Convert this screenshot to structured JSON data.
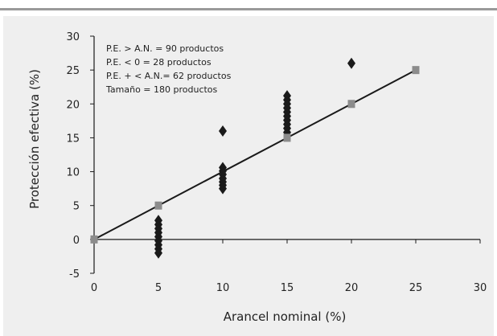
{
  "chart_data": {
    "type": "scatter",
    "xlabel": "Arancel nominal (%)",
    "ylabel": "Protección efectiva (%)",
    "xlim": [
      0,
      30
    ],
    "ylim": [
      -5,
      30
    ],
    "x_ticks": [
      0,
      5,
      10,
      15,
      20,
      25,
      30
    ],
    "y_ticks": [
      -5,
      0,
      5,
      10,
      15,
      20,
      25,
      30
    ],
    "x_tick_labels": [
      "0",
      "5",
      "10",
      "15",
      "20",
      "25",
      "30"
    ],
    "y_tick_labels": [
      "-5",
      "0",
      "5",
      "10",
      "15",
      "20",
      "25",
      "30"
    ],
    "grid": false,
    "annotations": [
      "P.E. > A.N. = 90 productos",
      "P.E. < 0 = 28 productos",
      "P.E. + < A.N.= 62 productos",
      "Tamaño = 180 productos"
    ],
    "series": [
      {
        "marker": "diamond",
        "color": "#1a1a1a",
        "points": [
          [
            5,
            2.8
          ],
          [
            5,
            2.2
          ],
          [
            5,
            1.6
          ],
          [
            5,
            1.0
          ],
          [
            5,
            0.4
          ],
          [
            5,
            -0.2
          ],
          [
            5,
            -0.8
          ],
          [
            5,
            -1.4
          ],
          [
            5,
            -2.0
          ],
          [
            10,
            16.0
          ],
          [
            10,
            10.6
          ],
          [
            10,
            10.1
          ],
          [
            10,
            9.6
          ],
          [
            10,
            9.0
          ],
          [
            10,
            8.5
          ],
          [
            10,
            8.0
          ],
          [
            10,
            7.5
          ],
          [
            15,
            21.2
          ],
          [
            15,
            20.6
          ],
          [
            15,
            20.0
          ],
          [
            15,
            19.4
          ],
          [
            15,
            18.8
          ],
          [
            15,
            18.2
          ],
          [
            15,
            17.6
          ],
          [
            15,
            17.0
          ],
          [
            15,
            16.4
          ],
          [
            15,
            15.8
          ],
          [
            20,
            26.0
          ]
        ]
      },
      {
        "marker": "square",
        "color": "#8c8c8c",
        "points": [
          [
            0,
            0
          ],
          [
            5,
            5
          ],
          [
            15,
            15
          ],
          [
            20,
            20
          ],
          [
            25,
            25
          ]
        ]
      },
      {
        "marker": "line",
        "color": "#1a1a1a",
        "points": [
          [
            0,
            0
          ],
          [
            25,
            25
          ]
        ]
      }
    ]
  }
}
